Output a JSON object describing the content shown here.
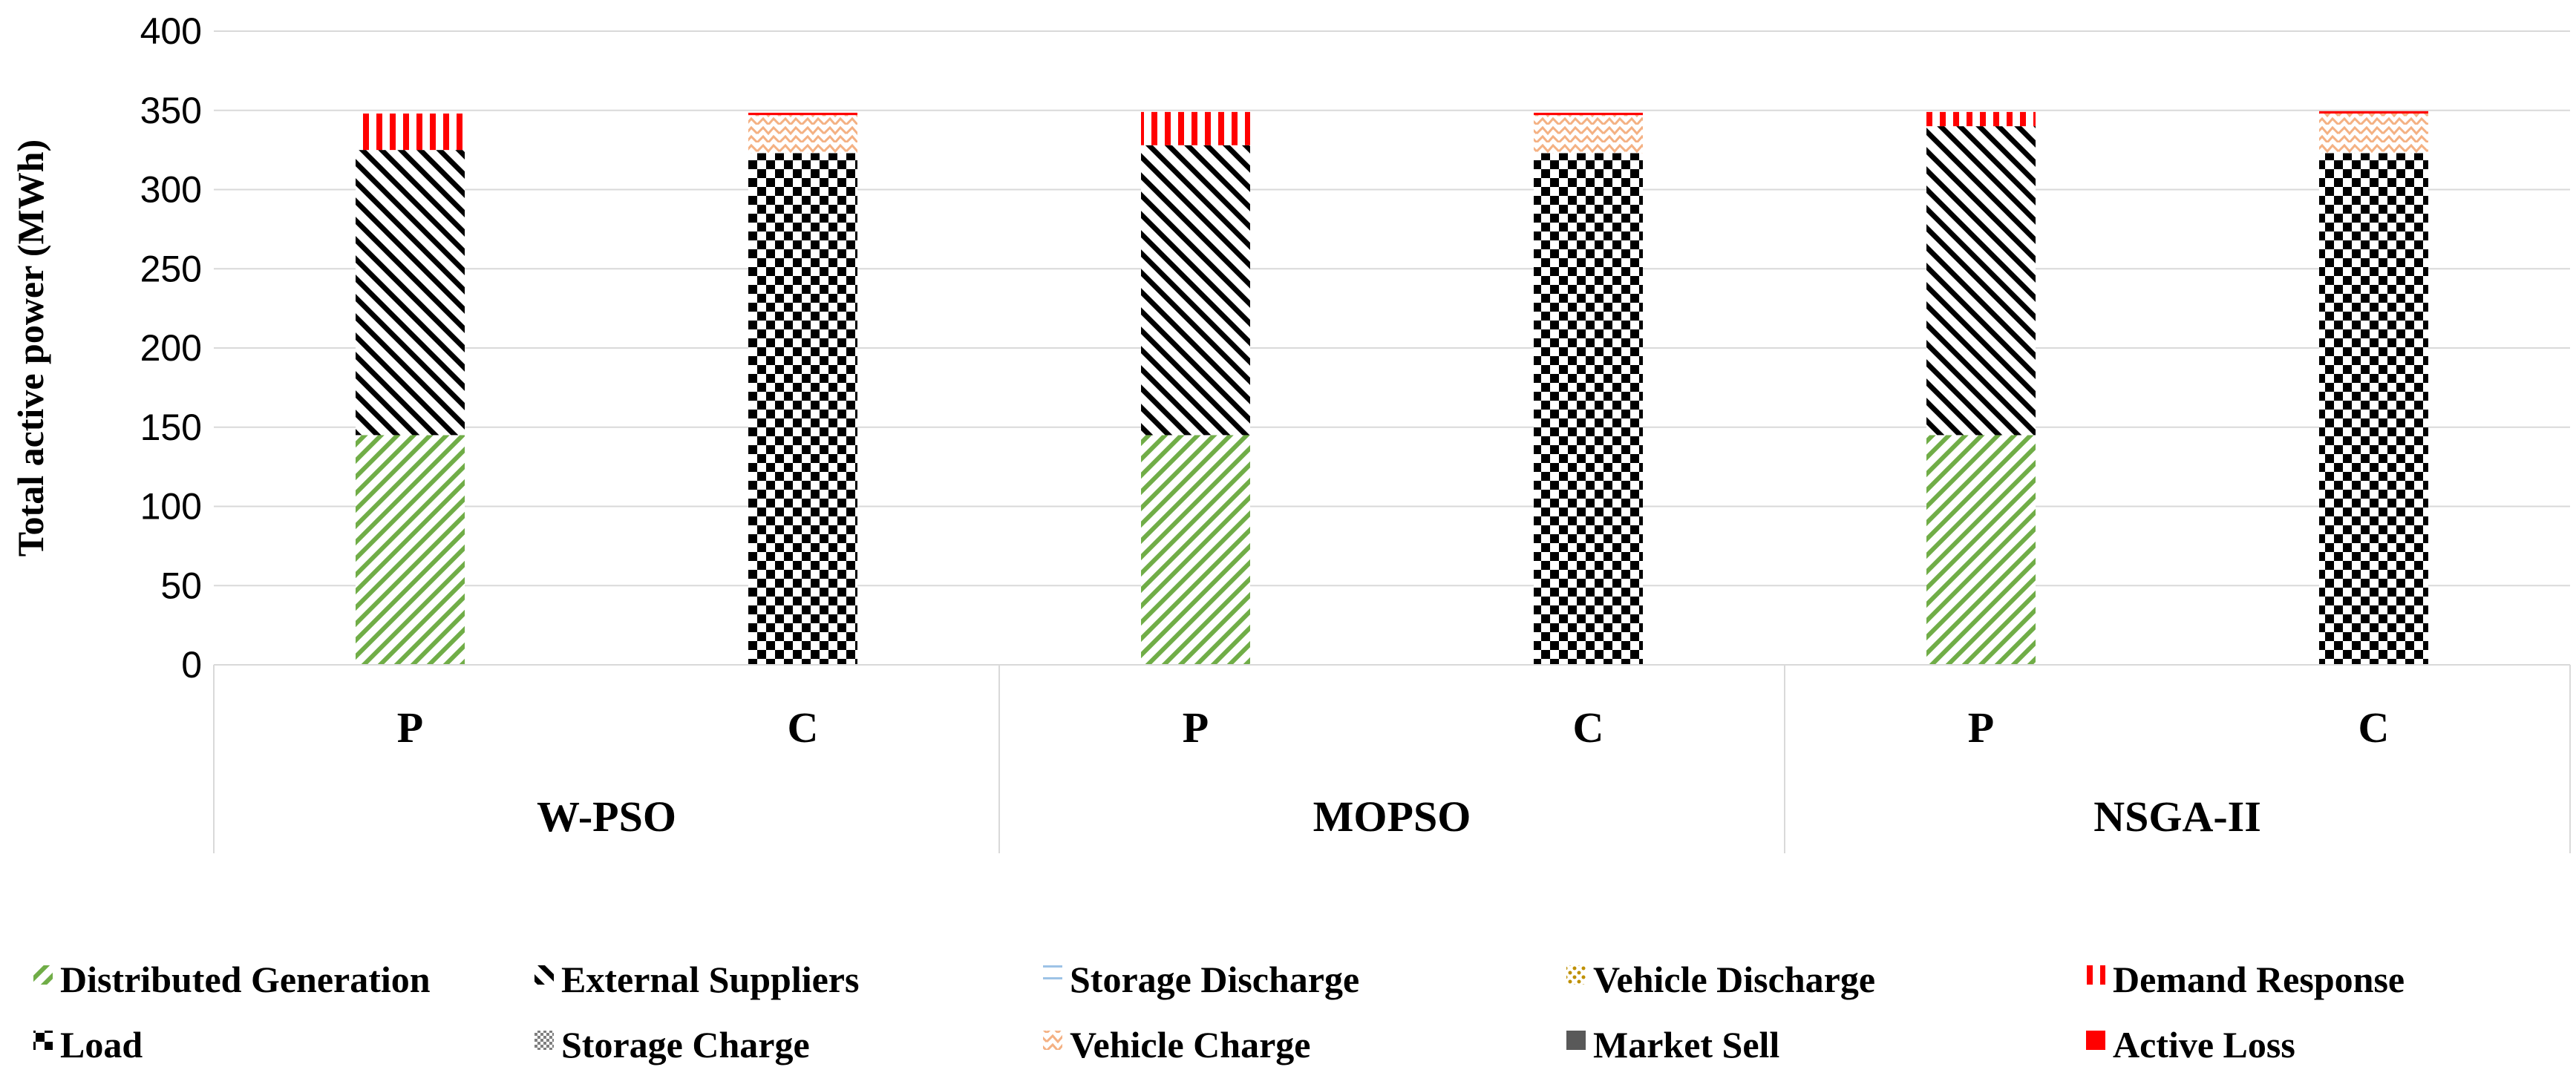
{
  "chart_data": {
    "type": "bar",
    "stacked": true,
    "title": "",
    "ylabel": "Total active power (MWh)",
    "ylim": [
      0,
      400
    ],
    "yticks": [
      0,
      50,
      100,
      150,
      200,
      250,
      300,
      350,
      400
    ],
    "grid": true,
    "legend_position": "bottom",
    "groups": [
      "W-PSO",
      "MOPSO",
      "NSGA-II"
    ],
    "categories": [
      "P",
      "C",
      "P",
      "C",
      "P",
      "C"
    ],
    "series": [
      {
        "name": "Distributed Generation",
        "color": "#70ad47",
        "pattern": "diag-right",
        "values": [
          145,
          0,
          145,
          0,
          145,
          0
        ]
      },
      {
        "name": "External Suppliers",
        "color": "#000000",
        "pattern": "diag-left",
        "values": [
          180,
          0,
          183,
          0,
          195,
          0
        ]
      },
      {
        "name": "Storage Discharge",
        "color": "#9dc3e6",
        "pattern": "horizontal",
        "values": [
          0,
          0,
          0,
          0,
          0,
          0
        ]
      },
      {
        "name": "Vehicle Discharge",
        "color": "#bf9000",
        "pattern": "dots",
        "values": [
          0,
          0,
          0,
          0,
          0,
          0
        ]
      },
      {
        "name": "Demand Response",
        "color": "#ff0000",
        "pattern": "vertical",
        "values": [
          23,
          0,
          21,
          0,
          9,
          0
        ]
      },
      {
        "name": "Load",
        "color": "#000000",
        "pattern": "checker",
        "values": [
          0,
          323,
          0,
          323,
          0,
          323
        ]
      },
      {
        "name": "Storage Charge",
        "color": "#7f7f7f",
        "pattern": "fine-checker",
        "values": [
          0,
          0,
          0,
          0,
          0,
          0
        ]
      },
      {
        "name": "Vehicle Charge",
        "color": "#f4b183",
        "pattern": "zigzag",
        "values": [
          0,
          24,
          0,
          24,
          0,
          25
        ]
      },
      {
        "name": "Market Sell",
        "color": "#595959",
        "pattern": "solid",
        "values": [
          0,
          0,
          0,
          0,
          0,
          0
        ]
      },
      {
        "name": "Active Loss",
        "color": "#ff0000",
        "pattern": "solid",
        "values": [
          0,
          1.5,
          0,
          1.5,
          0,
          1.5
        ]
      }
    ]
  }
}
